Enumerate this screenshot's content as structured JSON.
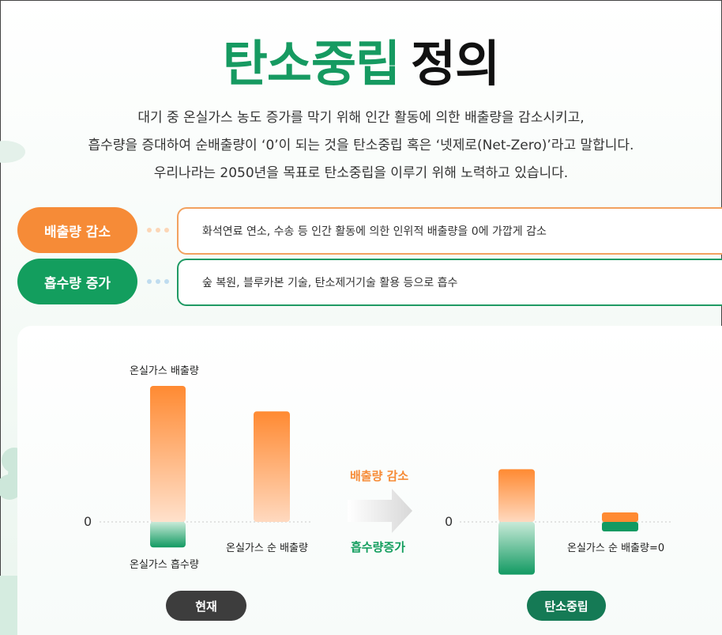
{
  "title": {
    "highlight": "탄소중립",
    "rest": "정의"
  },
  "intro": [
    "대기 중 온실가스 농도 증가를 막기 위해 인간 활동에 의한 배출량을 감소시키고,",
    "흡수량을 증대하여 순배출량이 ‘0’이 되는 것을 탄소중립 혹은 ‘넷제로(Net-Zero)’라고 말합니다.",
    "우리나라는 2050년을 목표로 탄소중립을 이루기 위해 노력하고 있습니다."
  ],
  "definitions": [
    {
      "label": "배출량 감소",
      "text": "화석연료 연소, 수송 등 인간 활동에 의한 인위적 배출량을 0에 가깝게 감소",
      "color": "#f68b37"
    },
    {
      "label": "흡수량 증가",
      "text": "숲 복원, 블루카본 기술, 탄소제거기술 활용 등으로 흡수",
      "color": "#139e5e"
    }
  ],
  "chart_data": {
    "type": "bar",
    "panels": [
      {
        "name": "현재",
        "bars": [
          {
            "name": "온실가스 배출량",
            "value": 8,
            "label_top": "온실가스 배출량"
          },
          {
            "name": "온실가스 흡수량",
            "value": -1.5,
            "label_bottom": "온실가스 흡수량"
          },
          {
            "name": "온실가스 순 배출량",
            "value": 6.5,
            "label_bottom": "온실가스 순 배출량"
          }
        ]
      },
      {
        "name": "탄소중립",
        "bars": [
          {
            "name": "배출량",
            "value": 3.1
          },
          {
            "name": "흡수량",
            "value": -3.1
          },
          {
            "name": "온실가스 순 배출량",
            "value": 0,
            "label": "온실가스 순 배출량=0"
          }
        ]
      }
    ],
    "zero_label": "0",
    "arrow_labels": {
      "top": "배출량 감소",
      "bottom": "흡수량증가"
    },
    "colors": {
      "emission": "#ff8a32",
      "absorption": "#149a63"
    }
  },
  "badges": {
    "now": "현재",
    "target": "탄소중립"
  }
}
